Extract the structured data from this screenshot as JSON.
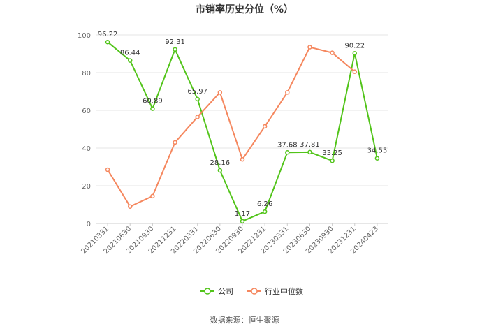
{
  "title": "市销率历史分位（%）",
  "source": "数据来源：恒生聚源",
  "colors": {
    "company": "#52c41a",
    "industry": "#f5875e",
    "grid": "#e6e6e6",
    "axis_text": "#666666",
    "label_text": "#333333"
  },
  "chart_data": {
    "type": "line",
    "title": "市销率历史分位（%）",
    "xlabel": "",
    "ylabel": "",
    "ylim": [
      0,
      100
    ],
    "yticks": [
      0,
      20,
      40,
      60,
      80,
      100
    ],
    "grid": true,
    "legend_position": "bottom-center",
    "categories": [
      "20210331",
      "20210630",
      "20210930",
      "20211231",
      "20220331",
      "20220630",
      "20220930",
      "20221231",
      "20230331",
      "20230630",
      "20230930",
      "20231231",
      "20240423"
    ],
    "series": [
      {
        "name": "公司",
        "color": "#52c41a",
        "values": [
          96.22,
          86.44,
          60.89,
          92.31,
          65.97,
          28.16,
          1.17,
          6.26,
          37.68,
          37.81,
          33.25,
          90.22,
          34.55
        ],
        "data_labels": [
          "96.22",
          "86.44",
          "60.89",
          "92.31",
          "65.97",
          "28.16",
          "1.17",
          "6.26",
          "37.68",
          "37.81",
          "33.25",
          "90.22",
          "34.55"
        ]
      },
      {
        "name": "行业中位数",
        "color": "#f5875e",
        "values": [
          28.5,
          9,
          14.5,
          43,
          56.5,
          69.5,
          34,
          51.5,
          69.5,
          93.5,
          90.5,
          80.5,
          null
        ]
      }
    ]
  }
}
